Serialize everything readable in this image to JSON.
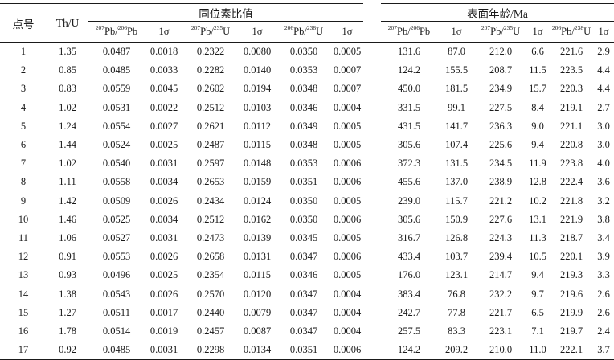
{
  "headers": {
    "point_no": "点号",
    "th_u": "Th/U",
    "group_ratio": "同位素比值",
    "group_age": "表面年龄/Ma",
    "sigma": "1σ",
    "iso_a": {
      "sup_num": "207",
      "num": "Pb/",
      "sup_den": "206",
      "den": "Pb"
    },
    "iso_b": {
      "sup_num": "207",
      "num": "Pb/",
      "sup_den": "235",
      "den": "U"
    },
    "iso_c": {
      "sup_num": "206",
      "num": "Pb/",
      "sup_den": "238",
      "den": "U"
    }
  },
  "rows": [
    [
      "1",
      "1.35",
      "0.0487",
      "0.0018",
      "0.2322",
      "0.0080",
      "0.0350",
      "0.0005",
      "131.6",
      "87.0",
      "212.0",
      "6.6",
      "221.6",
      "2.9"
    ],
    [
      "2",
      "0.85",
      "0.0485",
      "0.0033",
      "0.2282",
      "0.0140",
      "0.0353",
      "0.0007",
      "124.2",
      "155.5",
      "208.7",
      "11.5",
      "223.5",
      "4.4"
    ],
    [
      "3",
      "0.83",
      "0.0559",
      "0.0045",
      "0.2602",
      "0.0194",
      "0.0348",
      "0.0007",
      "450.0",
      "181.5",
      "234.9",
      "15.7",
      "220.3",
      "4.4"
    ],
    [
      "4",
      "1.02",
      "0.0531",
      "0.0022",
      "0.2512",
      "0.0103",
      "0.0346",
      "0.0004",
      "331.5",
      "99.1",
      "227.5",
      "8.4",
      "219.1",
      "2.7"
    ],
    [
      "5",
      "1.24",
      "0.0554",
      "0.0027",
      "0.2621",
      "0.0112",
      "0.0349",
      "0.0005",
      "431.5",
      "141.7",
      "236.3",
      "9.0",
      "221.1",
      "3.0"
    ],
    [
      "6",
      "1.44",
      "0.0524",
      "0.0025",
      "0.2487",
      "0.0115",
      "0.0348",
      "0.0005",
      "305.6",
      "107.4",
      "225.6",
      "9.4",
      "220.8",
      "3.0"
    ],
    [
      "7",
      "1.02",
      "0.0540",
      "0.0031",
      "0.2597",
      "0.0148",
      "0.0353",
      "0.0006",
      "372.3",
      "131.5",
      "234.5",
      "11.9",
      "223.8",
      "4.0"
    ],
    [
      "8",
      "1.11",
      "0.0558",
      "0.0034",
      "0.2653",
      "0.0159",
      "0.0351",
      "0.0006",
      "455.6",
      "137.0",
      "238.9",
      "12.8",
      "222.4",
      "3.6"
    ],
    [
      "9",
      "1.42",
      "0.0509",
      "0.0026",
      "0.2434",
      "0.0124",
      "0.0350",
      "0.0005",
      "239.0",
      "115.7",
      "221.2",
      "10.2",
      "221.8",
      "3.2"
    ],
    [
      "10",
      "1.46",
      "0.0525",
      "0.0034",
      "0.2512",
      "0.0162",
      "0.0350",
      "0.0006",
      "305.6",
      "150.9",
      "227.6",
      "13.1",
      "221.9",
      "3.8"
    ],
    [
      "11",
      "1.06",
      "0.0527",
      "0.0031",
      "0.2473",
      "0.0139",
      "0.0345",
      "0.0005",
      "316.7",
      "126.8",
      "224.3",
      "11.3",
      "218.7",
      "3.4"
    ],
    [
      "12",
      "0.91",
      "0.0553",
      "0.0026",
      "0.2658",
      "0.0131",
      "0.0347",
      "0.0006",
      "433.4",
      "103.7",
      "239.4",
      "10.5",
      "220.1",
      "3.9"
    ],
    [
      "13",
      "0.93",
      "0.0496",
      "0.0025",
      "0.2354",
      "0.0115",
      "0.0346",
      "0.0005",
      "176.0",
      "123.1",
      "214.7",
      "9.4",
      "219.3",
      "3.3"
    ],
    [
      "14",
      "1.38",
      "0.0543",
      "0.0026",
      "0.2570",
      "0.0120",
      "0.0347",
      "0.0004",
      "383.4",
      "76.8",
      "232.2",
      "9.7",
      "219.6",
      "2.6"
    ],
    [
      "15",
      "1.27",
      "0.0511",
      "0.0017",
      "0.2440",
      "0.0079",
      "0.0347",
      "0.0004",
      "242.7",
      "77.8",
      "221.7",
      "6.5",
      "219.9",
      "2.6"
    ],
    [
      "16",
      "1.78",
      "0.0514",
      "0.0019",
      "0.2457",
      "0.0087",
      "0.0347",
      "0.0004",
      "257.5",
      "83.3",
      "223.1",
      "7.1",
      "219.7",
      "2.4"
    ],
    [
      "17",
      "0.92",
      "0.0485",
      "0.0031",
      "0.2298",
      "0.0134",
      "0.0351",
      "0.0006",
      "124.2",
      "209.2",
      "210.0",
      "11.0",
      "222.1",
      "3.7"
    ]
  ]
}
